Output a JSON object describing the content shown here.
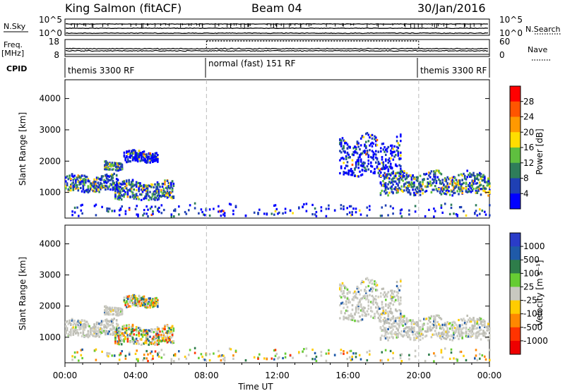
{
  "header": {
    "station": "King Salmon (fitACF)",
    "beam": "Beam 04",
    "date": "30/Jan/2016"
  },
  "panels": {
    "noise": {
      "left_label": "N.Sky",
      "left_ticks": [
        "10^5",
        "10^0"
      ],
      "right_ticks": [
        "10^5",
        "10^0"
      ],
      "right_label": "N.Search"
    },
    "freq": {
      "left_label": "Freq.",
      "unit": "[MHz]",
      "left_ticks": [
        "18",
        "8"
      ],
      "right_ticks": [
        "60",
        "0"
      ],
      "right_label": "Nave"
    },
    "cpid": {
      "label": "CPID",
      "modes": [
        "themis 3300 RF",
        "normal (fast) 151 RF",
        "themis 3300 RF"
      ],
      "mode_hours": [
        [
          0,
          8
        ],
        [
          8,
          20
        ],
        [
          20,
          24
        ]
      ]
    }
  },
  "range_axis": {
    "label": "Slant Range [km]",
    "ticks": [
      "1000",
      "2000",
      "3000",
      "4000"
    ],
    "tick_values": [
      1000,
      2000,
      3000,
      4000
    ],
    "ylim": [
      180,
      4600
    ]
  },
  "time_axis": {
    "label": "Time UT",
    "ticks": [
      "00:00",
      "04:00",
      "08:00",
      "12:00",
      "16:00",
      "20:00",
      "00:00"
    ],
    "xlim": [
      0,
      24
    ]
  },
  "power_scale": {
    "label": "Power [dB]",
    "ticks": [
      "4",
      "8",
      "12",
      "16",
      "20",
      "24",
      "28"
    ],
    "colors": [
      "#0000ff",
      "#1f40b4",
      "#2e7d5a",
      "#5fbf3f",
      "#ffdd00",
      "#ff9900",
      "#ff5500",
      "#ff0000"
    ]
  },
  "velocity_scale": {
    "label": "Velocity [m s⁻¹]",
    "ticks": [
      "1000",
      "500",
      "100",
      "25",
      "-25",
      "-100",
      "-500",
      "-1000"
    ],
    "colors": [
      "#2a3cc8",
      "#1f5aa8",
      "#2e7d4a",
      "#66cc33",
      "#c8c8c0",
      "#ffcc00",
      "#ff8800",
      "#ff3300",
      "#ee0000"
    ]
  },
  "chart_data": [
    {
      "type": "heatmap",
      "title": "Power [dB]",
      "xlabel": "Time UT",
      "ylabel": "Slant Range [km]",
      "xlim": [
        0,
        24
      ],
      "ylim": [
        180,
        4600
      ],
      "echo_regions": [
        {
          "t": [
            0.0,
            3.0
          ],
          "range": [
            1000,
            1600
          ],
          "level": "moderate"
        },
        {
          "t": [
            2.2,
            3.2
          ],
          "range": [
            1700,
            2000
          ],
          "level": "moderate"
        },
        {
          "t": [
            3.3,
            5.2
          ],
          "range": [
            1950,
            2350
          ],
          "level": "weak"
        },
        {
          "t": [
            2.8,
            6.1
          ],
          "range": [
            750,
            1400
          ],
          "level": "moderate"
        },
        {
          "t": [
            0.3,
            24.0
          ],
          "range": [
            220,
            650
          ],
          "level": "weak-scattered"
        },
        {
          "t": [
            15.5,
            19.0
          ],
          "range": [
            1500,
            2900
          ],
          "level": "weak"
        },
        {
          "t": [
            17.8,
            24.0
          ],
          "range": [
            900,
            1700
          ],
          "level": "moderate"
        }
      ]
    },
    {
      "type": "heatmap",
      "title": "Velocity [m s⁻¹]",
      "xlabel": "Time UT",
      "ylabel": "Slant Range [km]",
      "xlim": [
        0,
        24
      ],
      "ylim": [
        180,
        4600
      ],
      "echo_regions": [
        {
          "t": [
            0.0,
            3.0
          ],
          "range": [
            1000,
            1600
          ],
          "velocity": "ground scatter (~0)"
        },
        {
          "t": [
            2.2,
            3.2
          ],
          "range": [
            1700,
            2000
          ],
          "velocity": "ground scatter (~0)"
        },
        {
          "t": [
            3.3,
            5.2
          ],
          "range": [
            1950,
            2350
          ],
          "velocity": "mixed"
        },
        {
          "t": [
            2.8,
            6.1
          ],
          "range": [
            750,
            1400
          ],
          "velocity": "mixed (+/-100)"
        },
        {
          "t": [
            0.3,
            24.0
          ],
          "range": [
            220,
            650
          ],
          "velocity": "mixed"
        },
        {
          "t": [
            15.5,
            19.0
          ],
          "range": [
            1500,
            2900
          ],
          "velocity": "ground scatter (~0)"
        },
        {
          "t": [
            17.8,
            24.0
          ],
          "range": [
            900,
            1700
          ],
          "velocity": "ground scatter (~0)"
        }
      ]
    }
  ]
}
